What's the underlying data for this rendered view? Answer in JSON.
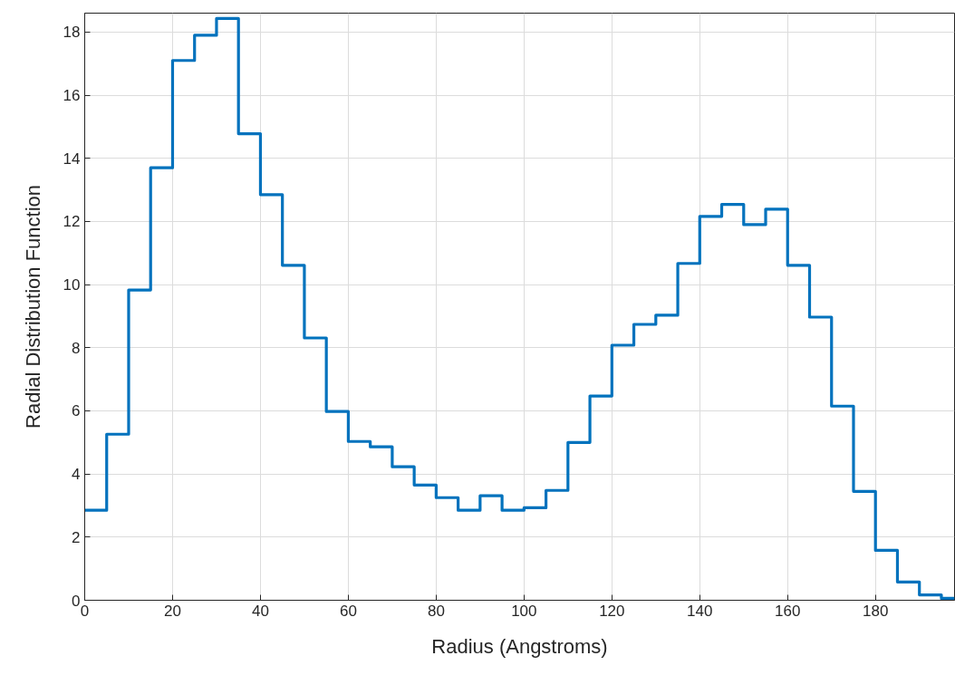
{
  "chart_data": {
    "type": "step",
    "xlabel": "Radius (Angstroms)",
    "ylabel": "Radial Distribution Function",
    "x": [
      0,
      5,
      10,
      15,
      20,
      25,
      30,
      35,
      40,
      45,
      50,
      55,
      60,
      65,
      70,
      75,
      80,
      85,
      90,
      95,
      100,
      105,
      110,
      115,
      120,
      125,
      130,
      135,
      140,
      145,
      150,
      155,
      160,
      165,
      170,
      175,
      180,
      185,
      190,
      195,
      198
    ],
    "series": [
      {
        "color": "#0072bd",
        "values": [
          2.85,
          5.26,
          9.83,
          13.7,
          17.1,
          17.9,
          18.43,
          14.78,
          12.85,
          10.61,
          8.31,
          5.98,
          5.03,
          4.86,
          4.23,
          3.65,
          3.25,
          2.85,
          3.31,
          2.85,
          2.93,
          3.48,
          5.0,
          6.47,
          8.08,
          8.74,
          9.03,
          10.67,
          12.16,
          12.54,
          11.9,
          12.39,
          10.61,
          8.97,
          6.15,
          3.45,
          1.58,
          0.58,
          0.17,
          0.06,
          0.06
        ]
      }
    ],
    "xlim": [
      0,
      198
    ],
    "ylim": [
      0,
      18.6
    ],
    "xticks": [
      0,
      20,
      40,
      60,
      80,
      100,
      120,
      140,
      160,
      180
    ],
    "yticks": [
      0,
      2,
      4,
      6,
      8,
      10,
      12,
      14,
      16,
      18
    ],
    "grid": true
  }
}
